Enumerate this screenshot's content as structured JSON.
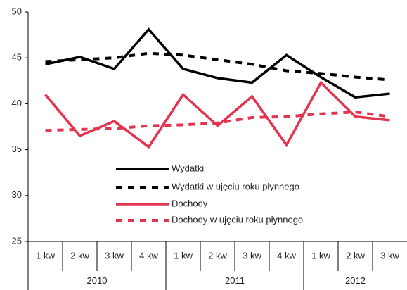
{
  "chart_data": {
    "type": "line",
    "categories": [
      "1 kw",
      "2 kw",
      "3 kw",
      "4 kw",
      "1 kw",
      "2 kw",
      "3 kw",
      "4 kw",
      "1 kw",
      "2 kw",
      "3 kw"
    ],
    "groups": [
      {
        "label": "2010",
        "span": 4
      },
      {
        "label": "2011",
        "span": 4
      },
      {
        "label": "2012",
        "span": 3
      }
    ],
    "series": [
      {
        "name": "Wydatki",
        "color": "#000000",
        "dashed": false,
        "values": [
          44.3,
          45.1,
          43.8,
          48.1,
          43.8,
          42.8,
          42.3,
          45.3,
          42.9,
          40.7,
          41.1
        ]
      },
      {
        "name": "Wydatki w ujęciu roku płynnego",
        "color": "#000000",
        "dashed": true,
        "values": [
          44.6,
          44.8,
          45.0,
          45.5,
          45.3,
          44.8,
          44.3,
          43.6,
          43.3,
          42.9,
          42.6
        ]
      },
      {
        "name": "Dochody",
        "color": "#e3344f",
        "dashed": false,
        "values": [
          41.0,
          36.5,
          38.1,
          35.3,
          41.0,
          37.6,
          40.8,
          35.5,
          42.3,
          38.6,
          38.2
        ]
      },
      {
        "name": "Dochody w ujęciu roku płynnego",
        "color": "#e3344f",
        "dashed": true,
        "values": [
          37.1,
          37.2,
          37.3,
          37.6,
          37.7,
          37.9,
          38.5,
          38.6,
          38.9,
          39.1,
          38.6
        ]
      }
    ],
    "ylim": [
      25,
      50
    ],
    "yticks": [
      25,
      30,
      35,
      40,
      45,
      50
    ],
    "grid": false
  }
}
